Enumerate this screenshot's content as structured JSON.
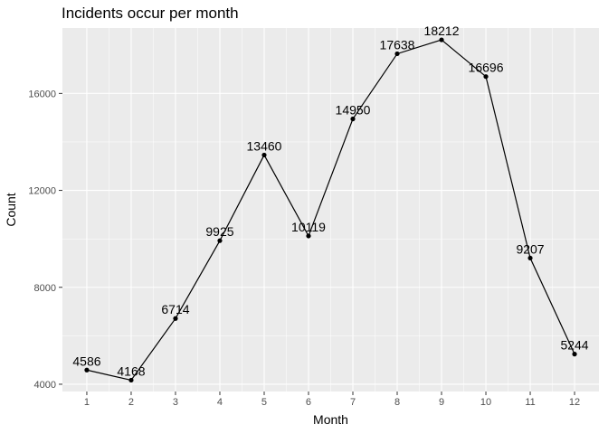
{
  "chart_data": {
    "type": "line",
    "title": "Incidents occur per month",
    "xlabel": "Month",
    "ylabel": "Count",
    "x": [
      1,
      2,
      3,
      4,
      5,
      6,
      7,
      8,
      9,
      10,
      11,
      12
    ],
    "values": [
      4586,
      4168,
      6714,
      9925,
      13460,
      10119,
      14950,
      17638,
      18212,
      16696,
      9207,
      5244
    ],
    "x_ticks": [
      "1",
      "2",
      "3",
      "4",
      "5",
      "6",
      "7",
      "8",
      "9",
      "10",
      "11",
      "12"
    ],
    "y_ticks": [
      4000,
      8000,
      12000,
      16000
    ],
    "xlim": [
      0.45,
      12.55
    ],
    "ylim": [
      3700,
      18700
    ],
    "grid": true,
    "colors": {
      "panel": "#ebebeb",
      "grid_major": "#ffffff",
      "line": "#000000",
      "point": "#000000",
      "tick": "#333333"
    }
  }
}
